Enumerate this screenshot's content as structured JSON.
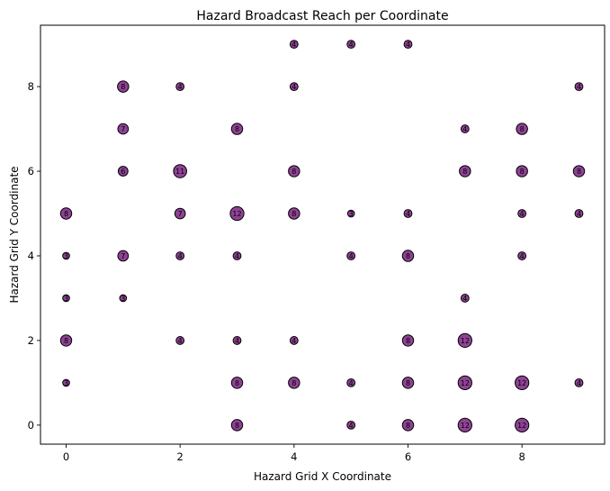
{
  "chart_data": {
    "type": "scatter",
    "title": "Hazard Broadcast Reach per Coordinate",
    "xlabel": "Hazard Grid X Coordinate",
    "ylabel": "Hazard Grid Y Coordinate",
    "xlim": [
      -0.45,
      9.45
    ],
    "ylim": [
      -0.45,
      9.45
    ],
    "xticks": [
      0,
      2,
      4,
      6,
      8
    ],
    "yticks": [
      0,
      2,
      4,
      6,
      8
    ],
    "grid": false,
    "marker_color": "#7b2182",
    "edge_color": "#000000",
    "size_encodes": "value",
    "points": [
      {
        "x": 4,
        "y": 9,
        "v": 4
      },
      {
        "x": 5,
        "y": 9,
        "v": 4
      },
      {
        "x": 6,
        "y": 9,
        "v": 4
      },
      {
        "x": 1,
        "y": 8,
        "v": 8
      },
      {
        "x": 2,
        "y": 8,
        "v": 4
      },
      {
        "x": 4,
        "y": 8,
        "v": 4
      },
      {
        "x": 9,
        "y": 8,
        "v": 4
      },
      {
        "x": 1,
        "y": 7,
        "v": 7
      },
      {
        "x": 3,
        "y": 7,
        "v": 8
      },
      {
        "x": 7,
        "y": 7,
        "v": 4
      },
      {
        "x": 8,
        "y": 7,
        "v": 8
      },
      {
        "x": 1,
        "y": 6,
        "v": 6
      },
      {
        "x": 2,
        "y": 6,
        "v": 11
      },
      {
        "x": 4,
        "y": 6,
        "v": 8
      },
      {
        "x": 7,
        "y": 6,
        "v": 8
      },
      {
        "x": 8,
        "y": 6,
        "v": 8
      },
      {
        "x": 9,
        "y": 6,
        "v": 8
      },
      {
        "x": 0,
        "y": 5,
        "v": 8
      },
      {
        "x": 2,
        "y": 5,
        "v": 7
      },
      {
        "x": 3,
        "y": 5,
        "v": 12
      },
      {
        "x": 4,
        "y": 5,
        "v": 8
      },
      {
        "x": 5,
        "y": 5,
        "v": 3
      },
      {
        "x": 6,
        "y": 5,
        "v": 4
      },
      {
        "x": 8,
        "y": 5,
        "v": 4
      },
      {
        "x": 9,
        "y": 5,
        "v": 4
      },
      {
        "x": 0,
        "y": 4,
        "v": 3
      },
      {
        "x": 1,
        "y": 4,
        "v": 7
      },
      {
        "x": 2,
        "y": 4,
        "v": 4
      },
      {
        "x": 3,
        "y": 4,
        "v": 4
      },
      {
        "x": 5,
        "y": 4,
        "v": 4
      },
      {
        "x": 6,
        "y": 4,
        "v": 8
      },
      {
        "x": 8,
        "y": 4,
        "v": 4
      },
      {
        "x": 0,
        "y": 3,
        "v": 3
      },
      {
        "x": 1,
        "y": 3,
        "v": 3
      },
      {
        "x": 7,
        "y": 3,
        "v": 4
      },
      {
        "x": 0,
        "y": 2,
        "v": 8
      },
      {
        "x": 2,
        "y": 2,
        "v": 4
      },
      {
        "x": 3,
        "y": 2,
        "v": 4
      },
      {
        "x": 4,
        "y": 2,
        "v": 4
      },
      {
        "x": 6,
        "y": 2,
        "v": 8
      },
      {
        "x": 7,
        "y": 2,
        "v": 12
      },
      {
        "x": 0,
        "y": 1,
        "v": 3
      },
      {
        "x": 3,
        "y": 1,
        "v": 8
      },
      {
        "x": 4,
        "y": 1,
        "v": 8
      },
      {
        "x": 5,
        "y": 1,
        "v": 4
      },
      {
        "x": 6,
        "y": 1,
        "v": 8
      },
      {
        "x": 7,
        "y": 1,
        "v": 12
      },
      {
        "x": 8,
        "y": 1,
        "v": 12
      },
      {
        "x": 9,
        "y": 1,
        "v": 4
      },
      {
        "x": 3,
        "y": 0,
        "v": 8
      },
      {
        "x": 5,
        "y": 0,
        "v": 4
      },
      {
        "x": 6,
        "y": 0,
        "v": 8
      },
      {
        "x": 7,
        "y": 0,
        "v": 12
      },
      {
        "x": 8,
        "y": 0,
        "v": 12
      }
    ]
  }
}
